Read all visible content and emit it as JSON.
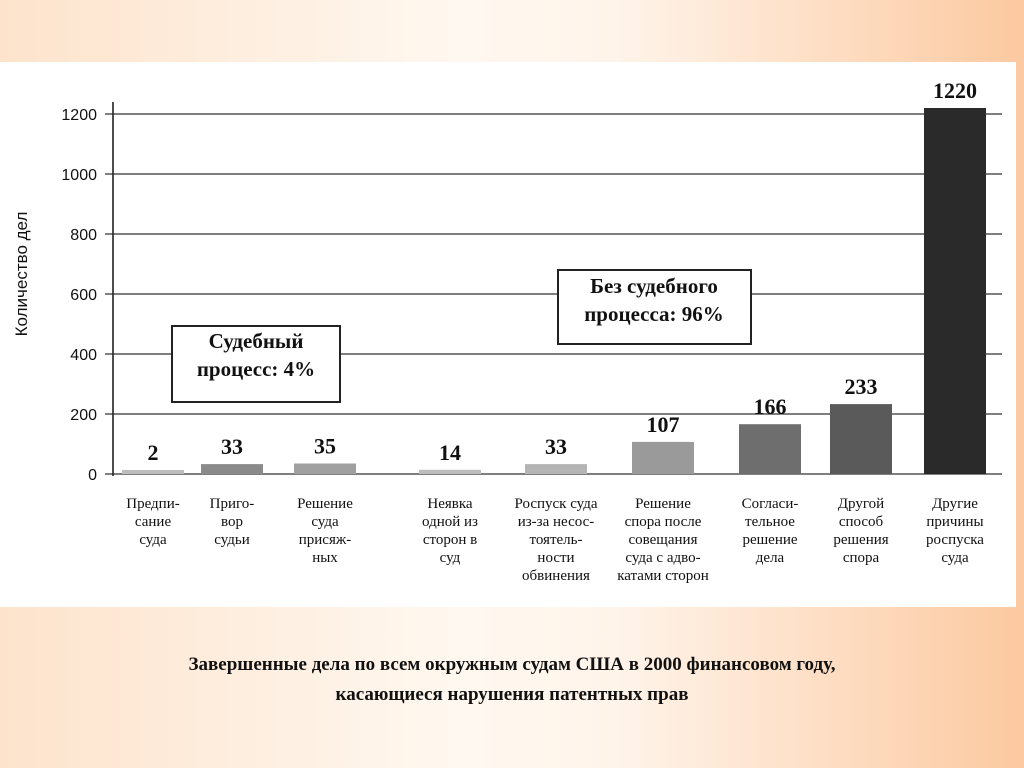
{
  "caption": {
    "line1": "Завершенные дела по всем окружным судам США в 2000 финансовом году,",
    "line2": "касающиеся нарушения патентных прав"
  },
  "chart_data": {
    "type": "bar",
    "title": "",
    "ylabel": "Количество дел",
    "xlabel": "",
    "ylim": [
      0,
      1220
    ],
    "yticks": [
      "0",
      "200",
      "400",
      "600",
      "800",
      "1000",
      "1200"
    ],
    "grid": true,
    "categories": [
      [
        "Предпи-",
        "сание",
        "суда"
      ],
      [
        "Приго-",
        "вор",
        "судьи"
      ],
      [
        "Решение",
        "суда",
        "присяж-",
        "ных"
      ],
      [
        "Неявка",
        "одной из",
        "сторон в",
        "суд"
      ],
      [
        "Роспуск суда",
        "из-за несос-",
        "тоятель-",
        "ности",
        "обвинения"
      ],
      [
        "Решение",
        "спора после",
        "совещания",
        "суда с адво-",
        "катами сторон"
      ],
      [
        "Согласи-",
        "тельное",
        "решение",
        "дела"
      ],
      [
        "Другой",
        "способ",
        "решения",
        "спора"
      ],
      [
        "Другие",
        "причины",
        "роспуска",
        "суда"
      ]
    ],
    "values": [
      2,
      33,
      35,
      14,
      33,
      107,
      166,
      233,
      1220
    ],
    "value_labels": [
      "2",
      "33",
      "35",
      "14",
      "33",
      "107",
      "166",
      "233",
      "1220"
    ],
    "bar_colors": [
      "#bdbdbd",
      "#8a8a8a",
      "#a0a0a0",
      "#bdbdbd",
      "#b5b5b5",
      "#9a9a9a",
      "#6e6e6e",
      "#5a5a5a",
      "#2a2a2a"
    ],
    "annotations": [
      {
        "lines": [
          "Судебный",
          "процесс: 4%"
        ]
      },
      {
        "lines": [
          "Без судебного",
          "процесса: 96%"
        ]
      }
    ]
  }
}
